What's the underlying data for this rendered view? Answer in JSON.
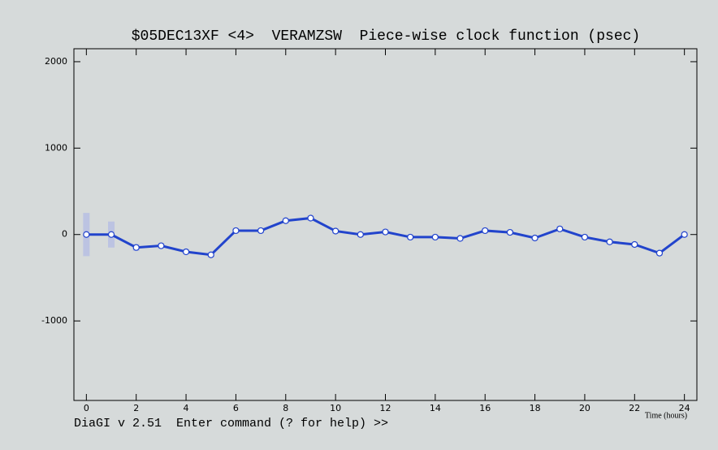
{
  "chart_data": {
    "type": "line",
    "title": "$05DEC13XF <4>  VERAMZSW  Piece-wise clock function (psec)",
    "x_label": "Time (hours)",
    "command_line": "DiaGI v 2.51  Enter command (? for help) >>",
    "x": [
      0,
      1,
      2,
      3,
      4,
      5,
      6,
      7,
      8,
      9,
      10,
      11,
      12,
      13,
      14,
      15,
      16,
      17,
      18,
      19,
      20,
      21,
      22,
      23,
      24
    ],
    "series": [
      {
        "color": "#2244cc",
        "values": [
          0,
          0,
          -150,
          -130,
          -200,
          -235,
          45,
          45,
          160,
          190,
          40,
          0,
          30,
          -30,
          -30,
          -45,
          45,
          25,
          -40,
          65,
          -30,
          -85,
          -115,
          -215,
          0
        ],
        "errors": [
          250,
          150,
          40,
          30,
          30,
          30,
          30,
          30,
          30,
          30,
          30,
          30,
          30,
          30,
          30,
          30,
          30,
          30,
          30,
          30,
          30,
          30,
          30,
          30,
          30
        ]
      }
    ],
    "xlim": [
      -0.5,
      24.5
    ],
    "ylim": [
      -1920,
      2150
    ],
    "xticks": [
      0,
      2,
      4,
      6,
      8,
      10,
      12,
      14,
      16,
      18,
      20,
      22,
      24
    ],
    "yticks": [
      -1000,
      0,
      1000,
      2000
    ]
  }
}
